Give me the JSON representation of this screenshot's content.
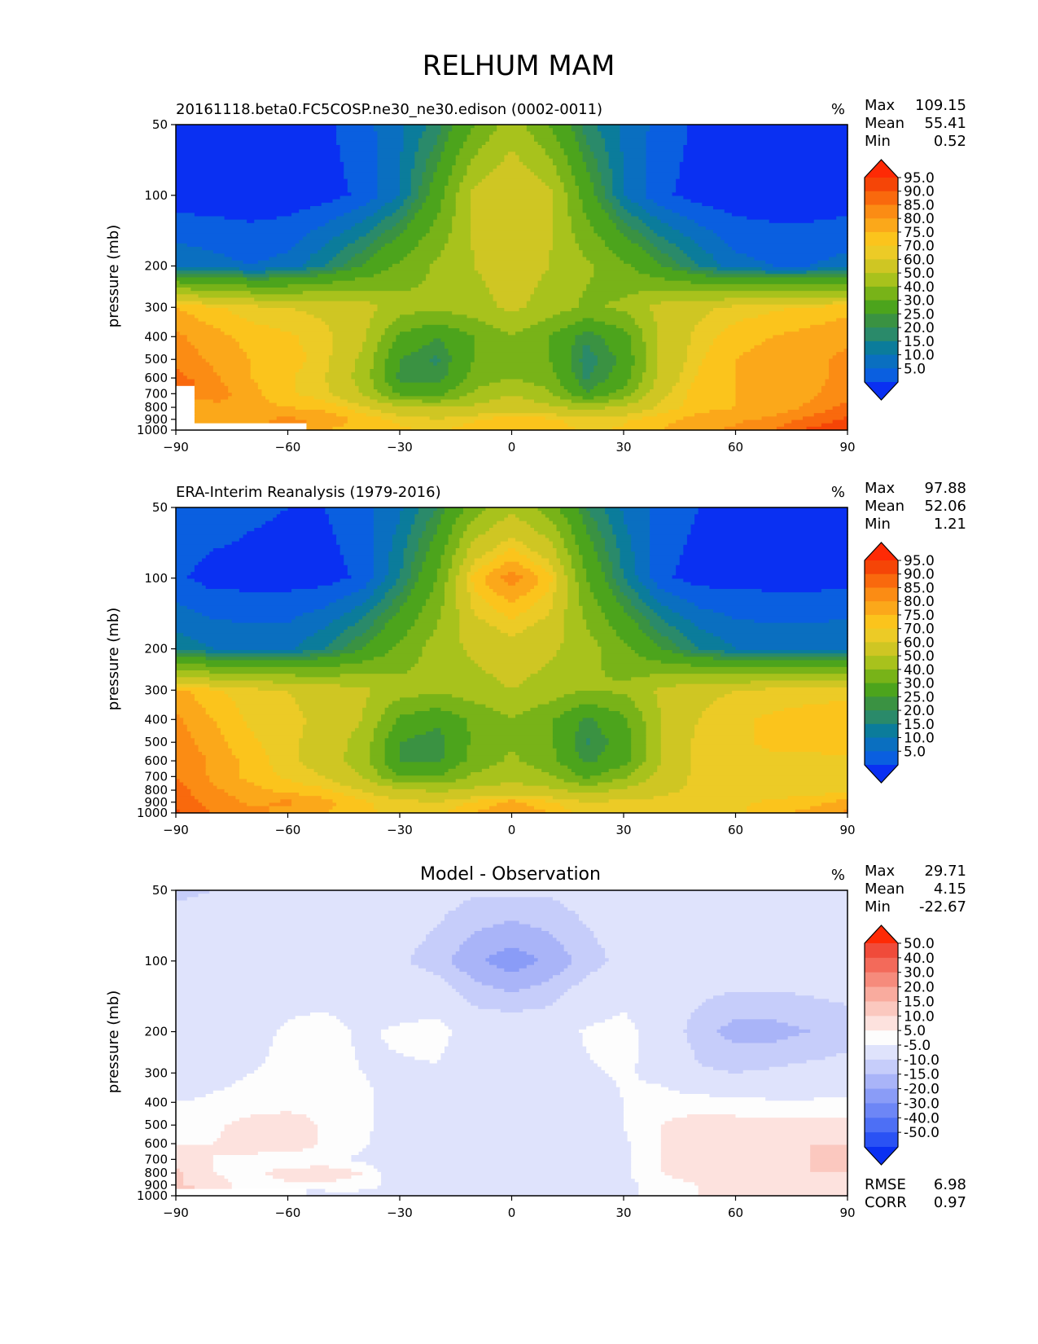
{
  "title": "RELHUM MAM",
  "ylabel": "pressure (mb)",
  "units": "%",
  "x_ticks": [
    "−90",
    "−60",
    "−30",
    "0",
    "30",
    "60",
    "90"
  ],
  "y_ticks": [
    "50",
    "100",
    "200",
    "300",
    "400",
    "500",
    "600",
    "700",
    "800",
    "900",
    "1000"
  ],
  "rmse": {
    "label": "RMSE",
    "value": "6.98"
  },
  "corr": {
    "label": "CORR",
    "value": "0.97"
  },
  "colors": {
    "rh": [
      "#0a30f2",
      "#0a5fe0",
      "#0a6fc0",
      "#0b7c9b",
      "#2a8a6a",
      "#3a9242",
      "#4ca41c",
      "#78b318",
      "#a8c21c",
      "#cfc623",
      "#eccb26",
      "#fbc41c",
      "#fba81a",
      "#fb8c14",
      "#f9690d",
      "#f54507",
      "#fe2a05"
    ],
    "diff": [
      "#0a30f2",
      "#2a52f4",
      "#4d6ff5",
      "#6d86f6",
      "#8a9cf7",
      "#a9b4f8",
      "#c6cdfa",
      "#dfe3fc",
      "#fdfdfd",
      "#fde2de",
      "#fbc8bf",
      "#f9ab9e",
      "#f68b7c",
      "#f36a5a",
      "#f04b3a",
      "#fe2a05"
    ]
  },
  "chart_data": [
    {
      "type": "heatmap",
      "panel": "model",
      "title": "20161118.beta0.FC5COSP.ne30_ne30.edison (0002-0011)",
      "units": "%",
      "stats": {
        "max_label": "Max",
        "max": "109.15",
        "mean_label": "Mean",
        "mean": "55.41",
        "min_label": "Min",
        "min": "0.52"
      },
      "xlabel": "",
      "ylabel": "pressure (mb)",
      "xlim": [
        -90,
        90
      ],
      "ylim": [
        1000,
        50
      ],
      "colorbar_levels": [
        "5.0",
        "10.0",
        "15.0",
        "20.0",
        "25.0",
        "30.0",
        "40.0",
        "50.0",
        "60.0",
        "70.0",
        "75.0",
        "80.0",
        "85.0",
        "90.0",
        "95.0"
      ],
      "lat": [
        -90,
        -80,
        -70,
        -60,
        -50,
        -40,
        -30,
        -20,
        -10,
        0,
        10,
        20,
        30,
        40,
        50,
        60,
        70,
        80,
        90
      ],
      "lev": [
        50,
        100,
        200,
        300,
        400,
        500,
        600,
        700,
        800,
        900,
        1000
      ],
      "values": [
        [
          3,
          3,
          3,
          3,
          4,
          8,
          14,
          22,
          40,
          55,
          40,
          22,
          14,
          8,
          4,
          3,
          3,
          3,
          3
        ],
        [
          2,
          2,
          2,
          2,
          3,
          6,
          15,
          35,
          63,
          70,
          63,
          35,
          15,
          6,
          3,
          2,
          2,
          2,
          2
        ],
        [
          14,
          12,
          10,
          12,
          20,
          30,
          42,
          52,
          60,
          66,
          60,
          52,
          42,
          30,
          20,
          12,
          10,
          10,
          12
        ],
        [
          80,
          76,
          72,
          70,
          68,
          65,
          55,
          52,
          56,
          62,
          56,
          48,
          52,
          64,
          68,
          72,
          74,
          76,
          78
        ],
        [
          86,
          82,
          78,
          76,
          72,
          62,
          38,
          30,
          40,
          50,
          40,
          26,
          36,
          62,
          72,
          78,
          80,
          82,
          84
        ],
        [
          88,
          84,
          80,
          78,
          72,
          58,
          30,
          24,
          40,
          48,
          40,
          22,
          32,
          62,
          74,
          80,
          82,
          84,
          86
        ],
        [
          92,
          86,
          80,
          76,
          70,
          56,
          28,
          26,
          44,
          50,
          44,
          24,
          34,
          64,
          76,
          80,
          82,
          84,
          86
        ],
        [
          null,
          88,
          82,
          76,
          72,
          60,
          38,
          36,
          52,
          60,
          52,
          30,
          44,
          68,
          78,
          80,
          82,
          84,
          88
        ],
        [
          null,
          84,
          82,
          80,
          78,
          72,
          62,
          60,
          62,
          66,
          62,
          56,
          62,
          72,
          78,
          80,
          82,
          86,
          92
        ],
        [
          null,
          84,
          84,
          86,
          84,
          78,
          74,
          70,
          74,
          78,
          76,
          72,
          74,
          78,
          82,
          84,
          86,
          92,
          96
        ],
        [
          null,
          null,
          null,
          null,
          80,
          78,
          76,
          74,
          78,
          80,
          78,
          74,
          76,
          80,
          84,
          86,
          90,
          96,
          98
        ]
      ]
    },
    {
      "type": "heatmap",
      "panel": "observation",
      "title": "ERA-Interim Reanalysis (1979-2016)",
      "units": "%",
      "stats": {
        "max_label": "Max",
        "max": "97.88",
        "mean_label": "Mean",
        "mean": "52.06",
        "min_label": "Min",
        "min": "1.21"
      },
      "xlabel": "",
      "ylabel": "pressure (mb)",
      "xlim": [
        -90,
        90
      ],
      "ylim": [
        1000,
        50
      ],
      "colorbar_levels": [
        "5.0",
        "10.0",
        "15.0",
        "20.0",
        "25.0",
        "30.0",
        "40.0",
        "50.0",
        "60.0",
        "70.0",
        "75.0",
        "80.0",
        "85.0",
        "90.0",
        "95.0"
      ],
      "lat": [
        -90,
        -80,
        -70,
        -60,
        -50,
        -40,
        -30,
        -20,
        -10,
        0,
        10,
        20,
        30,
        40,
        50,
        60,
        70,
        80,
        90
      ],
      "lev": [
        50,
        100,
        200,
        300,
        400,
        500,
        600,
        700,
        800,
        900,
        1000
      ],
      "values": [
        [
          8,
          8,
          6,
          5,
          5,
          8,
          14,
          25,
          45,
          58,
          45,
          25,
          14,
          8,
          5,
          4,
          4,
          4,
          4
        ],
        [
          6,
          3,
          3,
          3,
          3,
          6,
          20,
          40,
          78,
          88,
          78,
          40,
          20,
          6,
          3,
          3,
          3,
          3,
          3
        ],
        [
          18,
          15,
          14,
          14,
          20,
          30,
          42,
          55,
          62,
          66,
          62,
          55,
          42,
          30,
          20,
          15,
          14,
          14,
          15
        ],
        [
          82,
          76,
          72,
          70,
          66,
          62,
          55,
          52,
          56,
          60,
          56,
          50,
          52,
          62,
          68,
          70,
          72,
          72,
          72
        ],
        [
          86,
          80,
          74,
          72,
          68,
          60,
          38,
          32,
          42,
          50,
          42,
          28,
          38,
          60,
          70,
          74,
          76,
          78,
          80
        ],
        [
          88,
          82,
          76,
          72,
          66,
          56,
          30,
          26,
          42,
          48,
          42,
          24,
          34,
          60,
          72,
          74,
          76,
          76,
          78
        ],
        [
          90,
          84,
          78,
          72,
          66,
          54,
          30,
          28,
          44,
          52,
          44,
          28,
          36,
          60,
          72,
          74,
          74,
          74,
          74
        ],
        [
          90,
          84,
          78,
          74,
          70,
          60,
          40,
          40,
          52,
          58,
          52,
          38,
          48,
          64,
          72,
          72,
          72,
          72,
          72
        ],
        [
          92,
          86,
          82,
          78,
          76,
          70,
          62,
          58,
          62,
          64,
          62,
          56,
          62,
          68,
          72,
          72,
          72,
          72,
          74
        ],
        [
          94,
          88,
          84,
          86,
          82,
          76,
          72,
          70,
          76,
          82,
          76,
          70,
          72,
          72,
          72,
          74,
          76,
          78,
          82
        ],
        [
          96,
          90,
          86,
          84,
          80,
          76,
          74,
          74,
          80,
          84,
          80,
          72,
          70,
          70,
          72,
          74,
          78,
          82,
          86
        ]
      ]
    },
    {
      "type": "heatmap",
      "panel": "difference",
      "title": "Model - Observation",
      "units": "%",
      "stats": {
        "max_label": "Max",
        "max": "29.71",
        "mean_label": "Mean",
        "mean": "4.15",
        "min_label": "Min",
        "min": "-22.67"
      },
      "xlabel": "",
      "ylabel": "pressure (mb)",
      "xlim": [
        -90,
        90
      ],
      "ylim": [
        1000,
        50
      ],
      "colorbar_levels": [
        "-50.0",
        "-40.0",
        "-30.0",
        "-20.0",
        "-15.0",
        "-10.0",
        "-5.0",
        "5.0",
        "10.0",
        "15.0",
        "20.0",
        "30.0",
        "40.0",
        "50.0"
      ],
      "lat": [
        -90,
        -80,
        -70,
        -60,
        -50,
        -40,
        -30,
        -20,
        -10,
        0,
        10,
        20,
        30,
        40,
        50,
        60,
        70,
        80,
        90
      ],
      "lev": [
        50,
        100,
        200,
        300,
        400,
        500,
        600,
        700,
        800,
        900,
        1000
      ],
      "values": [
        [
          -6,
          -5,
          -3,
          0,
          0,
          0,
          0,
          -2,
          -4,
          -4,
          -4,
          -2,
          0,
          0,
          0,
          0,
          0,
          0,
          0
        ],
        [
          0,
          0,
          0,
          0,
          0,
          0,
          -4,
          -8,
          -14,
          -18,
          -14,
          -8,
          -3,
          0,
          0,
          0,
          0,
          0,
          0
        ],
        [
          -3,
          0,
          3,
          6,
          7,
          4,
          6,
          8,
          0,
          0,
          0,
          6,
          8,
          0,
          -8,
          -12,
          -12,
          -10,
          -8
        ],
        [
          0,
          3,
          5,
          6,
          7,
          5,
          4,
          4,
          0,
          0,
          0,
          4,
          6,
          3,
          -4,
          -5,
          -4,
          -3,
          -2
        ],
        [
          5,
          6,
          7,
          7,
          8,
          6,
          3,
          0,
          0,
          0,
          0,
          0,
          5,
          8,
          8,
          7,
          6,
          6,
          6
        ],
        [
          8,
          9,
          12,
          14,
          9,
          7,
          0,
          0,
          0,
          0,
          0,
          0,
          5,
          10,
          12,
          12,
          12,
          12,
          12
        ],
        [
          10,
          10,
          12,
          15,
          9,
          6,
          0,
          0,
          0,
          3,
          0,
          0,
          4,
          10,
          12,
          14,
          14,
          15,
          15
        ],
        [
          14,
          10,
          9,
          6,
          6,
          4,
          0,
          0,
          0,
          0,
          0,
          0,
          4,
          10,
          12,
          14,
          14,
          15,
          15
        ],
        [
          16,
          10,
          9,
          12,
          14,
          10,
          0,
          0,
          0,
          -5,
          0,
          0,
          4,
          10,
          12,
          14,
          14,
          15,
          15
        ],
        [
          16,
          12,
          8,
          9,
          9,
          7,
          3,
          0,
          0,
          0,
          4,
          0,
          3,
          8,
          10,
          12,
          13,
          15,
          14
        ],
        [
          null,
          null,
          null,
          null,
          3,
          3,
          3,
          0,
          0,
          0,
          0,
          0,
          3,
          8,
          10,
          12,
          13,
          12,
          10
        ]
      ]
    }
  ]
}
